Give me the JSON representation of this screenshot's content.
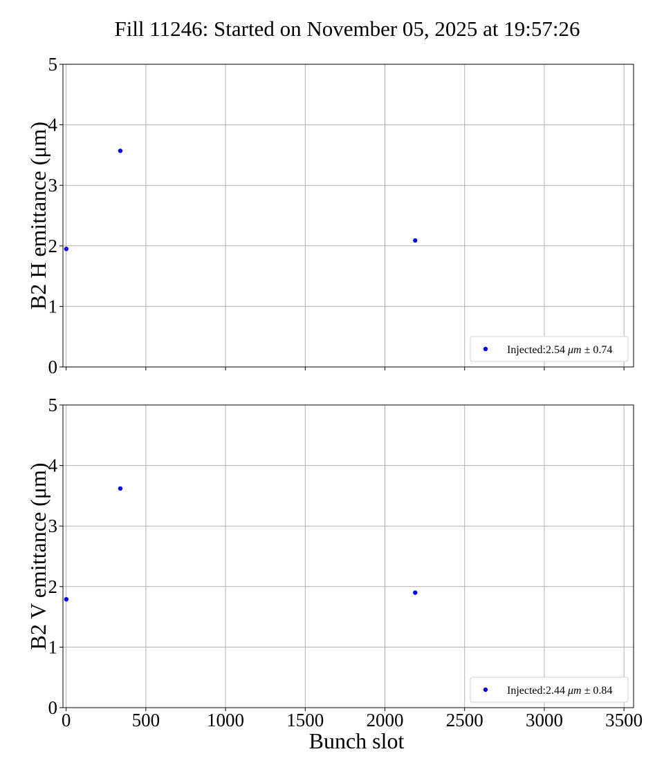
{
  "figure_title": "Fill 11246: Started on November 05, 2025 at 19:57:26",
  "colors": {
    "series": "#0000ff",
    "grid": "#b0b0b0"
  },
  "chart_data": [
    {
      "type": "scatter",
      "ylabel": "B2 H emittance (μm)",
      "xlabel": "",
      "xlim": [
        -20,
        3560
      ],
      "ylim": [
        0,
        5
      ],
      "xticks": [
        0,
        500,
        1000,
        1500,
        2000,
        2500,
        3000,
        3500
      ],
      "yticks": [
        0,
        1,
        2,
        3,
        4,
        5
      ],
      "show_x_tick_labels": false,
      "grid": true,
      "legend_position": "lower-right",
      "series": [
        {
          "name": "Injected:2.54 μm ± 0.74",
          "legend_text": "Injected:2.54",
          "legend_unit": "μm",
          "legend_err": "± 0.74",
          "color": "#0000ff",
          "x": [
            1,
            340,
            2190
          ],
          "y": [
            1.95,
            3.57,
            2.09
          ]
        }
      ]
    },
    {
      "type": "scatter",
      "ylabel": "B2 V emittance (μm)",
      "xlabel": "Bunch slot",
      "xlim": [
        -20,
        3560
      ],
      "ylim": [
        0,
        5
      ],
      "xticks": [
        0,
        500,
        1000,
        1500,
        2000,
        2500,
        3000,
        3500
      ],
      "yticks": [
        0,
        1,
        2,
        3,
        4,
        5
      ],
      "show_x_tick_labels": true,
      "grid": true,
      "legend_position": "lower-right",
      "series": [
        {
          "name": "Injected:2.44 μm ± 0.84",
          "legend_text": "Injected:2.44",
          "legend_unit": "μm",
          "legend_err": "± 0.84",
          "color": "#0000ff",
          "x": [
            1,
            340,
            2190
          ],
          "y": [
            1.79,
            3.62,
            1.9
          ]
        }
      ]
    }
  ]
}
